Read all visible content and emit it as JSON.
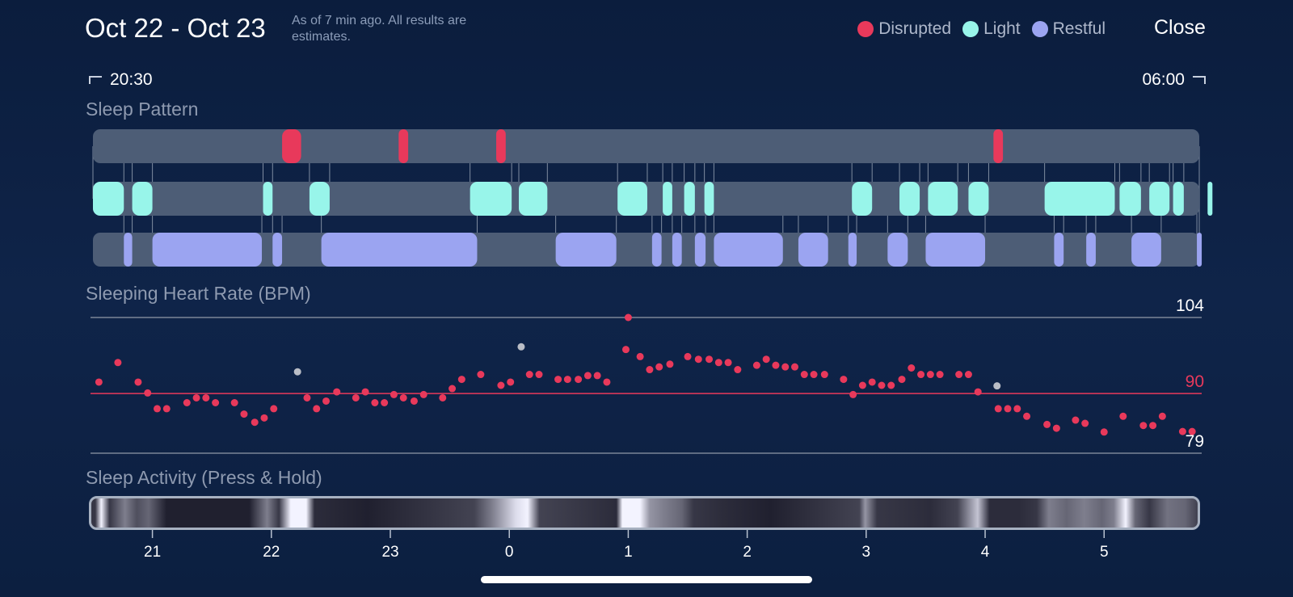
{
  "header": {
    "title": "Oct 22 - Oct 23",
    "subtitle": "As of 7 min ago. All results are estimates.",
    "close_label": "Close"
  },
  "legend": [
    {
      "label": "Disrupted",
      "color": "#e8395b"
    },
    {
      "label": "Light",
      "color": "#98f5ea"
    },
    {
      "label": "Restful",
      "color": "#9ba4f1"
    }
  ],
  "time_range": {
    "start": "20:30",
    "end": "06:00"
  },
  "sections": {
    "sleep_pattern": "Sleep Pattern",
    "heart_rate": "Sleeping Heart Rate (BPM)",
    "activity": "Sleep Activity (Press & Hold)"
  },
  "colors": {
    "track": "#4d5d76",
    "disrupted": "#e8395b",
    "light": "#98f5ea",
    "restful": "#9ba4f1",
    "hr_point": "#e8395b",
    "hr_outlier": "#b9bdc6",
    "hr_ref_line": "#e8395b",
    "grid_line": "#7b8597"
  },
  "chart_data": [
    {
      "type": "timeline",
      "name": "Sleep Pattern",
      "x_unit": "hours",
      "x_range": [
        20.5,
        29.8
      ],
      "rows": [
        "Disrupted",
        "Light",
        "Restful"
      ],
      "segments": {
        "Disrupted": [
          [
            22.09,
            22.25
          ],
          [
            23.07,
            23.15
          ],
          [
            23.89,
            23.97
          ],
          [
            28.07,
            28.15
          ]
        ],
        "Light": [
          [
            20.5,
            20.76
          ],
          [
            20.83,
            21.0
          ],
          [
            21.93,
            22.01
          ],
          [
            22.32,
            22.49
          ],
          [
            23.67,
            24.02
          ],
          [
            24.08,
            24.32
          ],
          [
            24.91,
            25.16
          ],
          [
            25.29,
            25.37
          ],
          [
            25.47,
            25.56
          ],
          [
            25.64,
            25.72
          ],
          [
            26.88,
            27.05
          ],
          [
            27.28,
            27.45
          ],
          [
            27.52,
            27.77
          ],
          [
            27.86,
            28.03
          ],
          [
            28.5,
            29.09
          ],
          [
            29.13,
            29.31
          ],
          [
            29.38,
            29.55
          ],
          [
            29.58,
            29.67
          ],
          [
            29.87,
            30.19
          ]
        ],
        "Restful": [
          [
            20.76,
            20.83
          ],
          [
            21.0,
            21.92
          ],
          [
            22.01,
            22.09
          ],
          [
            22.42,
            23.73
          ],
          [
            24.39,
            24.9
          ],
          [
            25.2,
            25.28
          ],
          [
            25.37,
            25.45
          ],
          [
            25.56,
            25.65
          ],
          [
            25.72,
            26.3
          ],
          [
            26.43,
            26.68
          ],
          [
            26.85,
            26.92
          ],
          [
            27.18,
            27.35
          ],
          [
            27.5,
            28.0
          ],
          [
            28.58,
            28.66
          ],
          [
            28.85,
            28.93
          ],
          [
            29.23,
            29.48
          ],
          [
            29.78,
            29.86
          ]
        ]
      }
    },
    {
      "type": "scatter",
      "name": "Sleeping Heart Rate (BPM)",
      "x_unit": "hours",
      "x_range": [
        20.5,
        29.8
      ],
      "ylim": [
        79,
        104
      ],
      "reference_lines": [
        104,
        90,
        79
      ],
      "y_tick_labels": [
        "104",
        "90",
        "79"
      ],
      "points": [
        [
          20.55,
          92.1
        ],
        [
          20.71,
          95.7
        ],
        [
          20.88,
          92.1
        ],
        [
          20.96,
          90.1
        ],
        [
          21.04,
          87.2
        ],
        [
          21.12,
          87.2
        ],
        [
          21.29,
          88.3
        ],
        [
          21.37,
          89.2
        ],
        [
          21.45,
          89.2
        ],
        [
          21.53,
          88.3
        ],
        [
          21.69,
          88.3
        ],
        [
          21.77,
          86.2
        ],
        [
          21.86,
          84.7
        ],
        [
          21.94,
          85.5
        ],
        [
          22.02,
          87.2
        ],
        [
          22.3,
          89.2
        ],
        [
          22.38,
          87.2
        ],
        [
          22.46,
          88.6
        ],
        [
          22.55,
          90.3
        ],
        [
          22.71,
          89.2
        ],
        [
          22.79,
          90.3
        ],
        [
          22.87,
          88.3
        ],
        [
          22.95,
          88.3
        ],
        [
          23.03,
          89.8
        ],
        [
          23.11,
          89.2
        ],
        [
          23.2,
          88.6
        ],
        [
          23.28,
          89.8
        ],
        [
          23.44,
          89.2
        ],
        [
          23.52,
          90.9
        ],
        [
          23.6,
          92.6
        ],
        [
          23.76,
          93.5
        ],
        [
          23.93,
          91.5
        ],
        [
          24.01,
          92.1
        ],
        [
          24.17,
          93.5
        ],
        [
          24.25,
          93.5
        ],
        [
          24.41,
          92.6
        ],
        [
          24.49,
          92.6
        ],
        [
          24.58,
          92.6
        ],
        [
          24.66,
          93.3
        ],
        [
          24.74,
          93.3
        ],
        [
          24.82,
          92.1
        ],
        [
          24.98,
          98.1
        ],
        [
          25.1,
          96.8
        ],
        [
          25.18,
          94.4
        ],
        [
          25.26,
          94.9
        ],
        [
          25.35,
          95.4
        ],
        [
          25.5,
          96.8
        ],
        [
          25.59,
          96.3
        ],
        [
          25.68,
          96.3
        ],
        [
          25.76,
          95.7
        ],
        [
          25.84,
          95.7
        ],
        [
          25.92,
          94.4
        ],
        [
          26.08,
          95.2
        ],
        [
          26.16,
          96.3
        ],
        [
          26.24,
          95.2
        ],
        [
          26.32,
          94.9
        ],
        [
          26.4,
          94.9
        ],
        [
          26.48,
          93.5
        ],
        [
          26.56,
          93.5
        ],
        [
          26.65,
          93.5
        ],
        [
          26.81,
          92.6
        ],
        [
          26.89,
          89.8
        ],
        [
          26.97,
          91.5
        ],
        [
          27.05,
          92.1
        ],
        [
          27.13,
          91.5
        ],
        [
          27.21,
          91.5
        ],
        [
          27.3,
          92.6
        ],
        [
          27.38,
          94.7
        ],
        [
          27.46,
          93.5
        ],
        [
          27.54,
          93.5
        ],
        [
          27.62,
          93.5
        ],
        [
          27.78,
          93.5
        ],
        [
          27.86,
          93.5
        ],
        [
          27.94,
          90.3
        ],
        [
          28.11,
          87.2
        ],
        [
          28.19,
          87.2
        ],
        [
          28.27,
          87.2
        ],
        [
          28.35,
          85.8
        ],
        [
          28.52,
          84.3
        ],
        [
          28.6,
          83.6
        ],
        [
          28.76,
          85.1
        ],
        [
          28.84,
          84.5
        ],
        [
          29.0,
          82.9
        ],
        [
          29.16,
          85.8
        ],
        [
          29.33,
          84.1
        ],
        [
          29.41,
          84.1
        ],
        [
          29.49,
          85.8
        ],
        [
          29.66,
          83.0
        ],
        [
          29.74,
          83.0
        ]
      ],
      "outliers": [
        [
          22.22,
          94.0
        ],
        [
          24.1,
          98.6
        ],
        [
          28.1,
          91.4
        ]
      ],
      "peak_point": [
        25.0,
        104.0
      ]
    },
    {
      "type": "heatmap",
      "name": "Sleep Activity (Press & Hold)",
      "x_unit": "hours",
      "x_range": [
        20.5,
        29.8
      ],
      "x_tick_labels": [
        "21",
        "22",
        "23",
        "0",
        "1",
        "2",
        "3",
        "4",
        "5"
      ],
      "x_ticks": [
        21,
        22,
        23,
        24,
        25,
        26,
        27,
        28,
        29
      ],
      "intensity": [
        [
          20.5,
          0.15
        ],
        [
          20.55,
          0.95
        ],
        [
          20.62,
          0.15
        ],
        [
          20.75,
          0.45
        ],
        [
          20.85,
          0.25
        ],
        [
          20.95,
          0.35
        ],
        [
          21.1,
          0.05
        ],
        [
          21.8,
          0.05
        ],
        [
          21.95,
          0.45
        ],
        [
          22.05,
          0.15
        ],
        [
          22.15,
          0.95
        ],
        [
          22.28,
          0.95
        ],
        [
          22.35,
          0.1
        ],
        [
          22.8,
          0.05
        ],
        [
          23.7,
          0.2
        ],
        [
          23.85,
          0.45
        ],
        [
          24.05,
          0.85
        ],
        [
          24.15,
          0.95
        ],
        [
          24.25,
          0.2
        ],
        [
          24.9,
          0.1
        ],
        [
          24.95,
          0.95
        ],
        [
          25.1,
          0.95
        ],
        [
          25.18,
          0.55
        ],
        [
          25.3,
          0.45
        ],
        [
          25.45,
          0.35
        ],
        [
          25.55,
          0.15
        ],
        [
          25.8,
          0.1
        ],
        [
          26.2,
          0.05
        ],
        [
          26.95,
          0.2
        ],
        [
          27.0,
          0.55
        ],
        [
          27.1,
          0.15
        ],
        [
          27.55,
          0.1
        ],
        [
          27.78,
          0.2
        ],
        [
          27.95,
          0.75
        ],
        [
          28.05,
          0.1
        ],
        [
          28.3,
          0.1
        ],
        [
          28.45,
          0.15
        ],
        [
          28.55,
          0.45
        ],
        [
          28.7,
          0.35
        ],
        [
          28.85,
          0.45
        ],
        [
          29.0,
          0.35
        ],
        [
          29.1,
          0.45
        ],
        [
          29.2,
          0.95
        ],
        [
          29.28,
          0.35
        ],
        [
          29.4,
          0.15
        ],
        [
          29.55,
          0.4
        ],
        [
          29.7,
          0.35
        ],
        [
          29.8,
          0.2
        ]
      ]
    }
  ]
}
